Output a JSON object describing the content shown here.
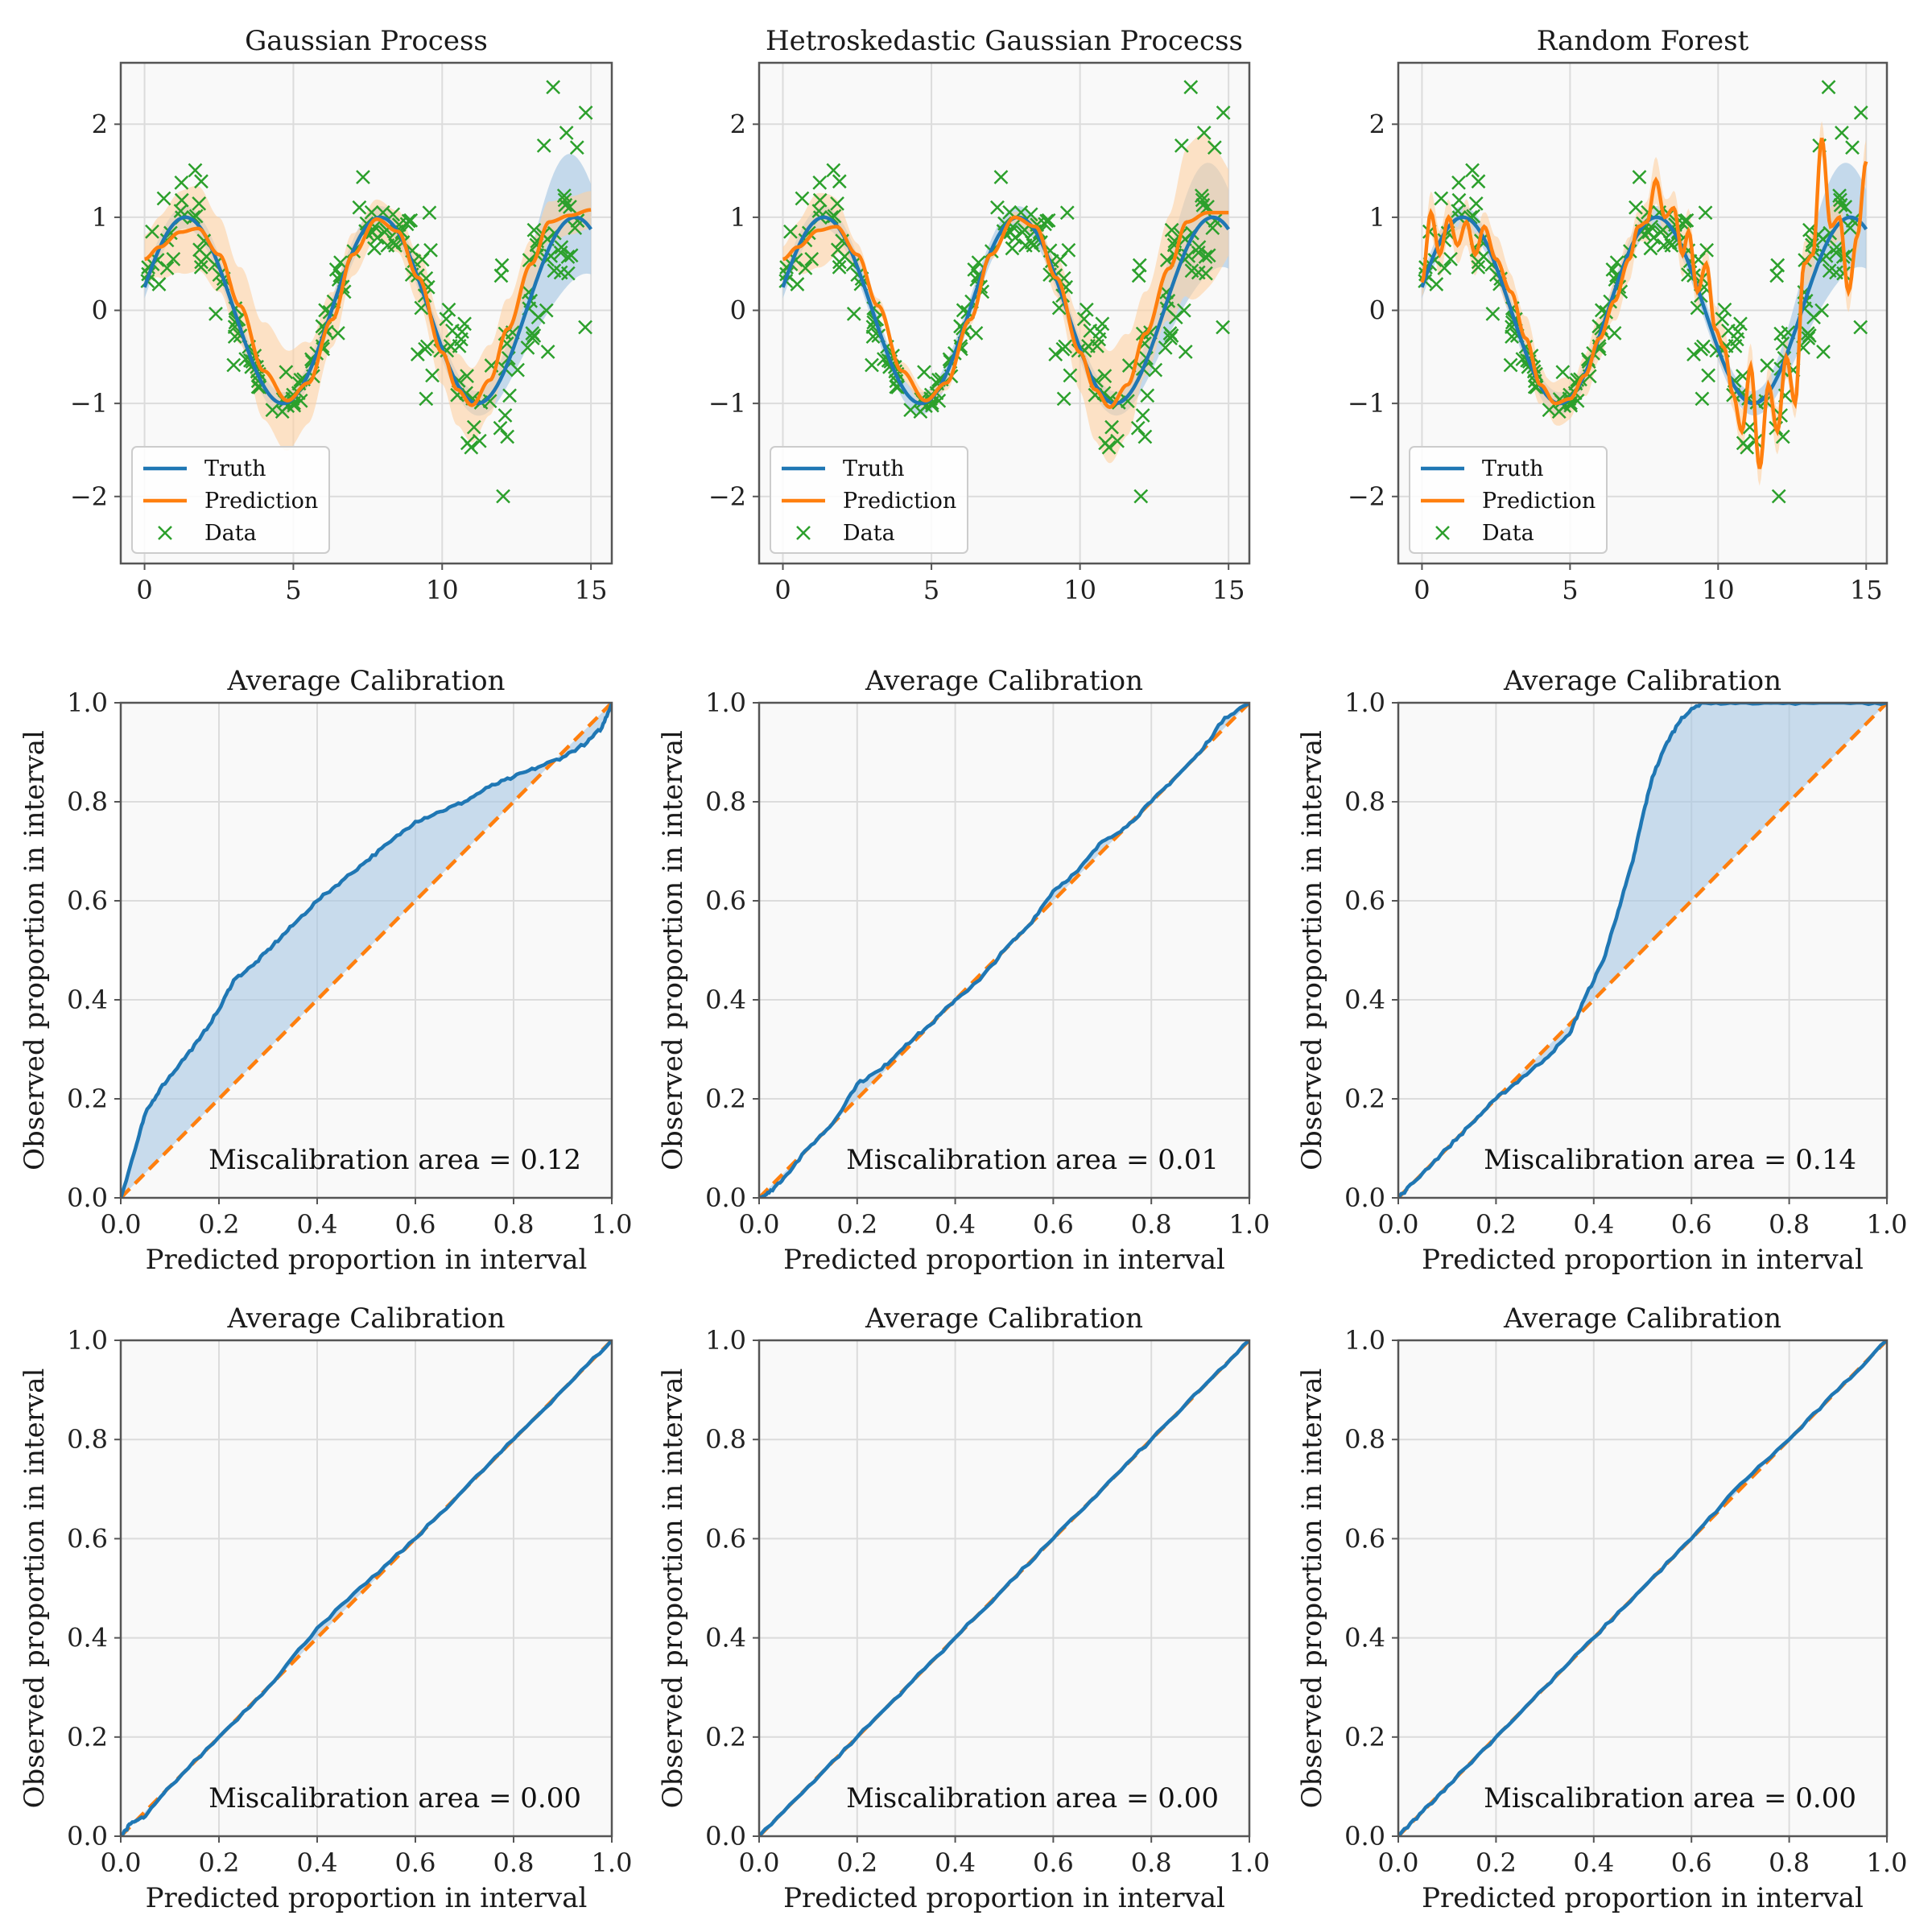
{
  "figure": {
    "colors": {
      "truth": "#1f77b4",
      "prediction": "#ff7f0e",
      "data": "#2ca02c",
      "truth_band": "#a7c7e3",
      "prediction_band": "#fdd0a2",
      "axes_bg": "#f9f9f9",
      "grid": "#dcdcdc",
      "spine": "#555555"
    }
  },
  "chart_data": [
    {
      "id": "gp",
      "type": "line",
      "title": "Gaussian Process",
      "xlim": [
        -0.8,
        15.7
      ],
      "ylim": [
        -2.72,
        2.66
      ],
      "xticks": [
        0,
        5,
        10,
        15
      ],
      "xtick_labels": [
        "0",
        "5",
        "10",
        "15"
      ],
      "yticks": [
        -2,
        -1,
        0,
        1,
        2
      ],
      "ytick_labels": [
        "−2",
        "−1",
        "0",
        "1",
        "2"
      ],
      "legend": {
        "position": "lower-left",
        "entries": [
          "Truth",
          "Prediction",
          "Data"
        ]
      },
      "x_range": [
        0,
        15
      ],
      "truth": {
        "func": "sin(x*0.96+0.25)",
        "band_func": "0.12 + 0.6*exp(-((x-14)^2)/2)"
      },
      "prediction": {
        "knots": [
          [
            0,
            0.55
          ],
          [
            0.5,
            0.68
          ],
          [
            1.2,
            0.84
          ],
          [
            1.8,
            0.88
          ],
          [
            2.5,
            0.6
          ],
          [
            3.2,
            0.05
          ],
          [
            4,
            -0.65
          ],
          [
            4.8,
            -0.97
          ],
          [
            5.5,
            -0.78
          ],
          [
            6.3,
            -0.1
          ],
          [
            7,
            0.6
          ],
          [
            7.8,
            0.98
          ],
          [
            8.5,
            0.85
          ],
          [
            9.2,
            0.35
          ],
          [
            10,
            -0.45
          ],
          [
            10.5,
            -0.85
          ],
          [
            11,
            -1.02
          ],
          [
            11.6,
            -0.75
          ],
          [
            12.2,
            -0.2
          ],
          [
            13,
            0.5
          ],
          [
            13.6,
            0.95
          ],
          [
            14.3,
            1.02
          ],
          [
            15,
            1.08
          ]
        ],
        "band_func": "0.2+0.35*exp(-((x-4.5)^2)/2.5)+0.25*exp(-((x-1.5)^2)/1.5)+0.2*exp(-((x-11)^2)/3)"
      },
      "data_noise": "hetero"
    },
    {
      "id": "hgp",
      "type": "line",
      "title": "Hetroskedastic Gaussian Procecss",
      "xlim": [
        -0.8,
        15.7
      ],
      "ylim": [
        -2.72,
        2.66
      ],
      "xticks": [
        0,
        5,
        10,
        15
      ],
      "xtick_labels": [
        "0",
        "5",
        "10",
        "15"
      ],
      "yticks": [
        -2,
        -1,
        0,
        1,
        2
      ],
      "ytick_labels": [
        "−2",
        "−1",
        "0",
        "1",
        "2"
      ],
      "legend": {
        "position": "lower-left",
        "entries": [
          "Truth",
          "Prediction",
          "Data"
        ]
      },
      "x_range": [
        0,
        15
      ],
      "truth": {
        "func": "sin(x*0.96+0.25)",
        "band_func": "0.12 + 0.5*exp(-((x-14)^2)/2)"
      },
      "prediction": {
        "knots": [
          [
            0,
            0.55
          ],
          [
            0.5,
            0.68
          ],
          [
            1.2,
            0.86
          ],
          [
            1.8,
            0.9
          ],
          [
            2.5,
            0.6
          ],
          [
            3.2,
            0.05
          ],
          [
            4,
            -0.65
          ],
          [
            4.8,
            -0.97
          ],
          [
            5.5,
            -0.78
          ],
          [
            6.3,
            -0.1
          ],
          [
            7,
            0.6
          ],
          [
            7.8,
            1.0
          ],
          [
            8.5,
            0.9
          ],
          [
            9.2,
            0.35
          ],
          [
            10,
            -0.45
          ],
          [
            10.5,
            -0.85
          ],
          [
            11,
            -1.04
          ],
          [
            11.6,
            -0.8
          ],
          [
            12.2,
            -0.25
          ],
          [
            13,
            0.45
          ],
          [
            13.6,
            0.95
          ],
          [
            14.3,
            1.05
          ],
          [
            15,
            1.05
          ]
        ],
        "band_func": "0.05+0.05*exp(-((x-4.5)^2)/2)+0.55*exp(-((x-11)^2)/2.5)+0.8*exp(-((x-14)^2)/1.5)+0.35*exp(-((x-1.2)^2)/1)"
      },
      "data_noise": "hetero"
    },
    {
      "id": "rf",
      "type": "line",
      "title": "Random Forest",
      "xlim": [
        -0.8,
        15.7
      ],
      "ylim": [
        -2.72,
        2.66
      ],
      "xticks": [
        0,
        5,
        10,
        15
      ],
      "xtick_labels": [
        "0",
        "5",
        "10",
        "15"
      ],
      "yticks": [
        -2,
        -1,
        0,
        1,
        2
      ],
      "ytick_labels": [
        "−2",
        "−1",
        "0",
        "1",
        "2"
      ],
      "legend": {
        "position": "lower-left",
        "entries": [
          "Truth",
          "Prediction",
          "Data"
        ]
      },
      "x_range": [
        0,
        15
      ],
      "truth": {
        "func": "sin(x*0.96+0.25)",
        "band_func": "0.12 + 0.5*exp(-((x-14)^2)/2)"
      },
      "prediction": {
        "knots": [
          [
            0,
            0.3
          ],
          [
            0.3,
            1.05
          ],
          [
            0.6,
            0.6
          ],
          [
            0.9,
            1.0
          ],
          [
            1.2,
            0.7
          ],
          [
            1.5,
            0.95
          ],
          [
            1.8,
            0.6
          ],
          [
            2.1,
            0.9
          ],
          [
            2.5,
            0.55
          ],
          [
            3,
            0.2
          ],
          [
            3.5,
            -0.3
          ],
          [
            4,
            -0.8
          ],
          [
            4.5,
            -1.0
          ],
          [
            5,
            -0.95
          ],
          [
            5.5,
            -0.7
          ],
          [
            6,
            -0.3
          ],
          [
            6.5,
            0.1
          ],
          [
            7,
            0.55
          ],
          [
            7.3,
            0.9
          ],
          [
            7.6,
            0.95
          ],
          [
            7.9,
            1.4
          ],
          [
            8.2,
            1.0
          ],
          [
            8.5,
            1.1
          ],
          [
            8.8,
            0.6
          ],
          [
            9,
            0.85
          ],
          [
            9.3,
            0.2
          ],
          [
            9.6,
            0.5
          ],
          [
            9.9,
            -0.2
          ],
          [
            10.2,
            -0.4
          ],
          [
            10.5,
            -0.9
          ],
          [
            10.8,
            -1.3
          ],
          [
            11.1,
            -0.6
          ],
          [
            11.4,
            -1.7
          ],
          [
            11.7,
            -0.8
          ],
          [
            12,
            -1.3
          ],
          [
            12.3,
            -0.5
          ],
          [
            12.6,
            -1.0
          ],
          [
            12.9,
            0.5
          ],
          [
            13.2,
            0.6
          ],
          [
            13.5,
            1.85
          ],
          [
            13.8,
            0.9
          ],
          [
            14.1,
            1.0
          ],
          [
            14.4,
            0.2
          ],
          [
            14.7,
            0.8
          ],
          [
            15,
            1.6
          ]
        ],
        "band_func": "0.15+0.1*abs(sin(x*3))"
      },
      "data_noise": "hetero"
    },
    {
      "id": "cal_gp_1",
      "type": "line",
      "title": "Average Calibration",
      "xlabel": "Predicted proportion in interval",
      "ylabel": "Observed proportion in interval",
      "xlim": [
        0,
        1
      ],
      "ylim": [
        0,
        1
      ],
      "xticks": [
        0,
        0.2,
        0.4,
        0.6,
        0.8,
        1
      ],
      "xtick_labels": [
        "0.0",
        "0.2",
        "0.4",
        "0.6",
        "0.8",
        "1.0"
      ],
      "yticks": [
        0,
        0.2,
        0.4,
        0.6,
        0.8,
        1
      ],
      "ytick_labels": [
        "0.0",
        "0.2",
        "0.4",
        "0.6",
        "0.8",
        "1.0"
      ],
      "annotation": "Miscalibration area = 0.12",
      "observed": [
        [
          0,
          0
        ],
        [
          0.03,
          0.1
        ],
        [
          0.05,
          0.17
        ],
        [
          0.08,
          0.22
        ],
        [
          0.12,
          0.27
        ],
        [
          0.16,
          0.32
        ],
        [
          0.2,
          0.38
        ],
        [
          0.23,
          0.44
        ],
        [
          0.27,
          0.47
        ],
        [
          0.31,
          0.51
        ],
        [
          0.35,
          0.55
        ],
        [
          0.4,
          0.6
        ],
        [
          0.45,
          0.64
        ],
        [
          0.5,
          0.68
        ],
        [
          0.55,
          0.72
        ],
        [
          0.6,
          0.76
        ],
        [
          0.65,
          0.78
        ],
        [
          0.7,
          0.8
        ],
        [
          0.75,
          0.83
        ],
        [
          0.8,
          0.85
        ],
        [
          0.85,
          0.87
        ],
        [
          0.9,
          0.89
        ],
        [
          0.95,
          0.92
        ],
        [
          0.98,
          0.95
        ],
        [
          1,
          1
        ]
      ]
    },
    {
      "id": "cal_hgp_1",
      "type": "line",
      "title": "Average Calibration",
      "xlabel": "Predicted proportion in interval",
      "ylabel": "Observed proportion in interval",
      "xlim": [
        0,
        1
      ],
      "ylim": [
        0,
        1
      ],
      "xticks": [
        0,
        0.2,
        0.4,
        0.6,
        0.8,
        1
      ],
      "xtick_labels": [
        "0.0",
        "0.2",
        "0.4",
        "0.6",
        "0.8",
        "1.0"
      ],
      "yticks": [
        0,
        0.2,
        0.4,
        0.6,
        0.8,
        1
      ],
      "ytick_labels": [
        "0.0",
        "0.2",
        "0.4",
        "0.6",
        "0.8",
        "1.0"
      ],
      "annotation": "Miscalibration area = 0.01",
      "observed": [
        [
          0,
          0
        ],
        [
          0.02,
          0.01
        ],
        [
          0.05,
          0.04
        ],
        [
          0.1,
          0.1
        ],
        [
          0.15,
          0.15
        ],
        [
          0.2,
          0.23
        ],
        [
          0.25,
          0.26
        ],
        [
          0.3,
          0.31
        ],
        [
          0.35,
          0.35
        ],
        [
          0.4,
          0.4
        ],
        [
          0.45,
          0.44
        ],
        [
          0.5,
          0.5
        ],
        [
          0.55,
          0.55
        ],
        [
          0.6,
          0.62
        ],
        [
          0.65,
          0.66
        ],
        [
          0.7,
          0.72
        ],
        [
          0.75,
          0.75
        ],
        [
          0.8,
          0.8
        ],
        [
          0.85,
          0.85
        ],
        [
          0.9,
          0.9
        ],
        [
          0.95,
          0.97
        ],
        [
          1,
          1
        ]
      ]
    },
    {
      "id": "cal_rf_1",
      "type": "line",
      "title": "Average Calibration",
      "xlabel": "Predicted proportion in interval",
      "ylabel": "Observed proportion in interval",
      "xlim": [
        0,
        1
      ],
      "ylim": [
        0,
        1
      ],
      "xticks": [
        0,
        0.2,
        0.4,
        0.6,
        0.8,
        1
      ],
      "xtick_labels": [
        "0.0",
        "0.2",
        "0.4",
        "0.6",
        "0.8",
        "1.0"
      ],
      "yticks": [
        0,
        0.2,
        0.4,
        0.6,
        0.8,
        1
      ],
      "ytick_labels": [
        "0.0",
        "0.2",
        "0.4",
        "0.6",
        "0.8",
        "1.0"
      ],
      "annotation": "Miscalibration area = 0.14",
      "observed": [
        [
          0,
          0
        ],
        [
          0.05,
          0.05
        ],
        [
          0.1,
          0.1
        ],
        [
          0.15,
          0.15
        ],
        [
          0.2,
          0.2
        ],
        [
          0.25,
          0.24
        ],
        [
          0.3,
          0.28
        ],
        [
          0.35,
          0.33
        ],
        [
          0.38,
          0.4
        ],
        [
          0.42,
          0.48
        ],
        [
          0.45,
          0.58
        ],
        [
          0.48,
          0.68
        ],
        [
          0.5,
          0.77
        ],
        [
          0.52,
          0.85
        ],
        [
          0.55,
          0.92
        ],
        [
          0.58,
          0.97
        ],
        [
          0.62,
          1.0
        ],
        [
          0.7,
          1.0
        ],
        [
          0.8,
          1.0
        ],
        [
          0.9,
          1.0
        ],
        [
          1,
          1
        ]
      ]
    },
    {
      "id": "cal_gp_2",
      "type": "line",
      "title": "Average Calibration",
      "xlabel": "Predicted proportion in interval",
      "ylabel": "Observed proportion in interval",
      "xlim": [
        0,
        1
      ],
      "ylim": [
        0,
        1
      ],
      "xticks": [
        0,
        0.2,
        0.4,
        0.6,
        0.8,
        1
      ],
      "xtick_labels": [
        "0.0",
        "0.2",
        "0.4",
        "0.6",
        "0.8",
        "1.0"
      ],
      "yticks": [
        0,
        0.2,
        0.4,
        0.6,
        0.8,
        1
      ],
      "ytick_labels": [
        "0.0",
        "0.2",
        "0.4",
        "0.6",
        "0.8",
        "1.0"
      ],
      "annotation": "Miscalibration area = 0.00",
      "observed": [
        [
          0,
          0
        ],
        [
          0.02,
          0.025
        ],
        [
          0.05,
          0.04
        ],
        [
          0.1,
          0.1
        ],
        [
          0.2,
          0.2
        ],
        [
          0.3,
          0.3
        ],
        [
          0.4,
          0.42
        ],
        [
          0.5,
          0.51
        ],
        [
          0.6,
          0.6
        ],
        [
          0.7,
          0.7
        ],
        [
          0.8,
          0.8
        ],
        [
          0.9,
          0.9
        ],
        [
          1,
          1
        ]
      ]
    },
    {
      "id": "cal_hgp_2",
      "type": "line",
      "title": "Average Calibration",
      "xlabel": "Predicted proportion in interval",
      "ylabel": "Observed proportion in interval",
      "xlim": [
        0,
        1
      ],
      "ylim": [
        0,
        1
      ],
      "xticks": [
        0,
        0.2,
        0.4,
        0.6,
        0.8,
        1
      ],
      "xtick_labels": [
        "0.0",
        "0.2",
        "0.4",
        "0.6",
        "0.8",
        "1.0"
      ],
      "yticks": [
        0,
        0.2,
        0.4,
        0.6,
        0.8,
        1
      ],
      "ytick_labels": [
        "0.0",
        "0.2",
        "0.4",
        "0.6",
        "0.8",
        "1.0"
      ],
      "annotation": "Miscalibration area = 0.00",
      "observed": [
        [
          0,
          0
        ],
        [
          0.1,
          0.1
        ],
        [
          0.2,
          0.2
        ],
        [
          0.3,
          0.3
        ],
        [
          0.4,
          0.4
        ],
        [
          0.5,
          0.5
        ],
        [
          0.6,
          0.6
        ],
        [
          0.7,
          0.7
        ],
        [
          0.8,
          0.8
        ],
        [
          0.9,
          0.9
        ],
        [
          1,
          1
        ]
      ]
    },
    {
      "id": "cal_rf_2",
      "type": "line",
      "title": "Average Calibration",
      "xlabel": "Predicted proportion in interval",
      "ylabel": "Observed proportion in interval",
      "xlim": [
        0,
        1
      ],
      "ylim": [
        0,
        1
      ],
      "xticks": [
        0,
        0.2,
        0.4,
        0.6,
        0.8,
        1
      ],
      "xtick_labels": [
        "0.0",
        "0.2",
        "0.4",
        "0.6",
        "0.8",
        "1.0"
      ],
      "yticks": [
        0,
        0.2,
        0.4,
        0.6,
        0.8,
        1
      ],
      "ytick_labels": [
        "0.0",
        "0.2",
        "0.4",
        "0.6",
        "0.8",
        "1.0"
      ],
      "annotation": "Miscalibration area = 0.00",
      "observed": [
        [
          0,
          0
        ],
        [
          0.05,
          0.05
        ],
        [
          0.1,
          0.1
        ],
        [
          0.2,
          0.2
        ],
        [
          0.3,
          0.3
        ],
        [
          0.4,
          0.4
        ],
        [
          0.5,
          0.5
        ],
        [
          0.6,
          0.6
        ],
        [
          0.7,
          0.71
        ],
        [
          0.8,
          0.8
        ],
        [
          0.9,
          0.9
        ],
        [
          1,
          1
        ]
      ]
    }
  ]
}
